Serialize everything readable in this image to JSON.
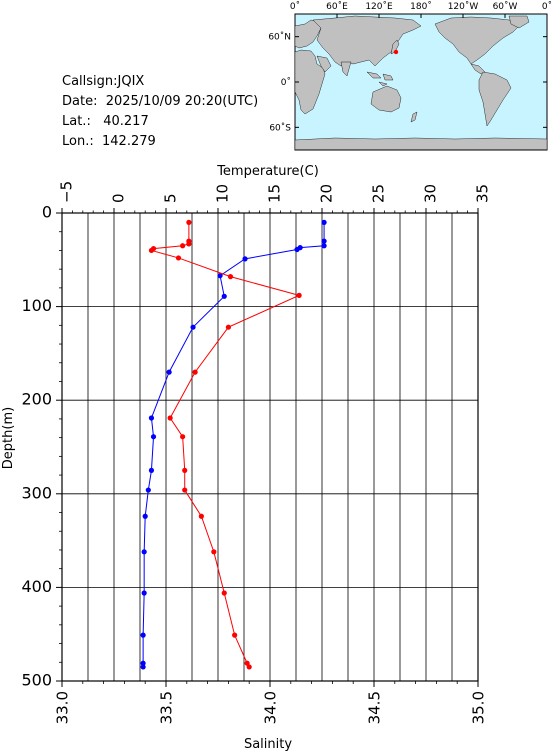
{
  "info": {
    "callsign": "Callsign:JQIX",
    "date_label": "Date:",
    "date": "2025/10/09 20:20(UTC)",
    "lat_label": "Lat.:",
    "lat": "40.217",
    "lon_label": "Lon.:",
    "lon": "142.279"
  },
  "map": {
    "lon_labels": [
      "0˚",
      "60˚E",
      "120˚E",
      "180˚",
      "120˚W",
      "60˚W",
      "0˚"
    ],
    "lat_labels": [
      "60˚N",
      "0˚",
      "60˚S"
    ],
    "ocean_color": "#c8f4ff",
    "land_color": "#c0c0c0",
    "station_color": "#ff0000",
    "station": {
      "lat": 40.217,
      "lon": 142.279
    }
  },
  "chart_data": {
    "type": "line",
    "top_axis_label": "Temperature(C)",
    "bottom_axis_label": "Salinity",
    "ylabel": "Depth(m)",
    "temperature_ticks": [
      "−5",
      "0",
      "5",
      "10",
      "15",
      "20",
      "25",
      "30",
      "35"
    ],
    "salinity_ticks": [
      "33.0",
      "33.5",
      "34.0",
      "34.5",
      "35.0"
    ],
    "depth_ticks": [
      "0",
      "100",
      "200",
      "300",
      "400",
      "500"
    ],
    "temperature_range": [
      -5,
      35
    ],
    "salinity_range": [
      33.0,
      35.0
    ],
    "depth_range": [
      0,
      500
    ],
    "grid": true,
    "series": [
      {
        "color": "#0000ff",
        "axis": "temperature",
        "points": [
          {
            "x": 20.2,
            "depth": 10
          },
          {
            "x": 20.2,
            "depth": 30
          },
          {
            "x": 20.2,
            "depth": 35
          },
          {
            "x": 17.9,
            "depth": 37
          },
          {
            "x": 17.6,
            "depth": 39
          },
          {
            "x": 12.6,
            "depth": 49
          },
          {
            "x": 10.2,
            "depth": 67
          },
          {
            "x": 10.6,
            "depth": 89
          },
          {
            "x": 7.6,
            "depth": 122
          },
          {
            "x": 5.3,
            "depth": 170
          },
          {
            "x": 3.6,
            "depth": 219
          },
          {
            "x": 3.8,
            "depth": 239
          },
          {
            "x": 3.6,
            "depth": 275
          },
          {
            "x": 3.3,
            "depth": 296
          },
          {
            "x": 3.0,
            "depth": 324
          },
          {
            "x": 2.9,
            "depth": 362
          },
          {
            "x": 2.9,
            "depth": 406
          },
          {
            "x": 2.8,
            "depth": 451
          },
          {
            "x": 2.8,
            "depth": 481
          },
          {
            "x": 2.8,
            "depth": 485
          }
        ]
      },
      {
        "color": "#ff0000",
        "axis": "salinity",
        "points": [
          {
            "x": 33.61,
            "depth": 10
          },
          {
            "x": 33.61,
            "depth": 30
          },
          {
            "x": 33.61,
            "depth": 33
          },
          {
            "x": 33.58,
            "depth": 35
          },
          {
            "x": 33.44,
            "depth": 38
          },
          {
            "x": 33.43,
            "depth": 40
          },
          {
            "x": 33.56,
            "depth": 48
          },
          {
            "x": 33.81,
            "depth": 68
          },
          {
            "x": 34.14,
            "depth": 88
          },
          {
            "x": 33.8,
            "depth": 122
          },
          {
            "x": 33.64,
            "depth": 170
          },
          {
            "x": 33.52,
            "depth": 219
          },
          {
            "x": 33.58,
            "depth": 239
          },
          {
            "x": 33.59,
            "depth": 275
          },
          {
            "x": 33.59,
            "depth": 296
          },
          {
            "x": 33.67,
            "depth": 324
          },
          {
            "x": 33.73,
            "depth": 362
          },
          {
            "x": 33.78,
            "depth": 406
          },
          {
            "x": 33.83,
            "depth": 451
          },
          {
            "x": 33.89,
            "depth": 481
          },
          {
            "x": 33.9,
            "depth": 485
          }
        ]
      }
    ]
  }
}
